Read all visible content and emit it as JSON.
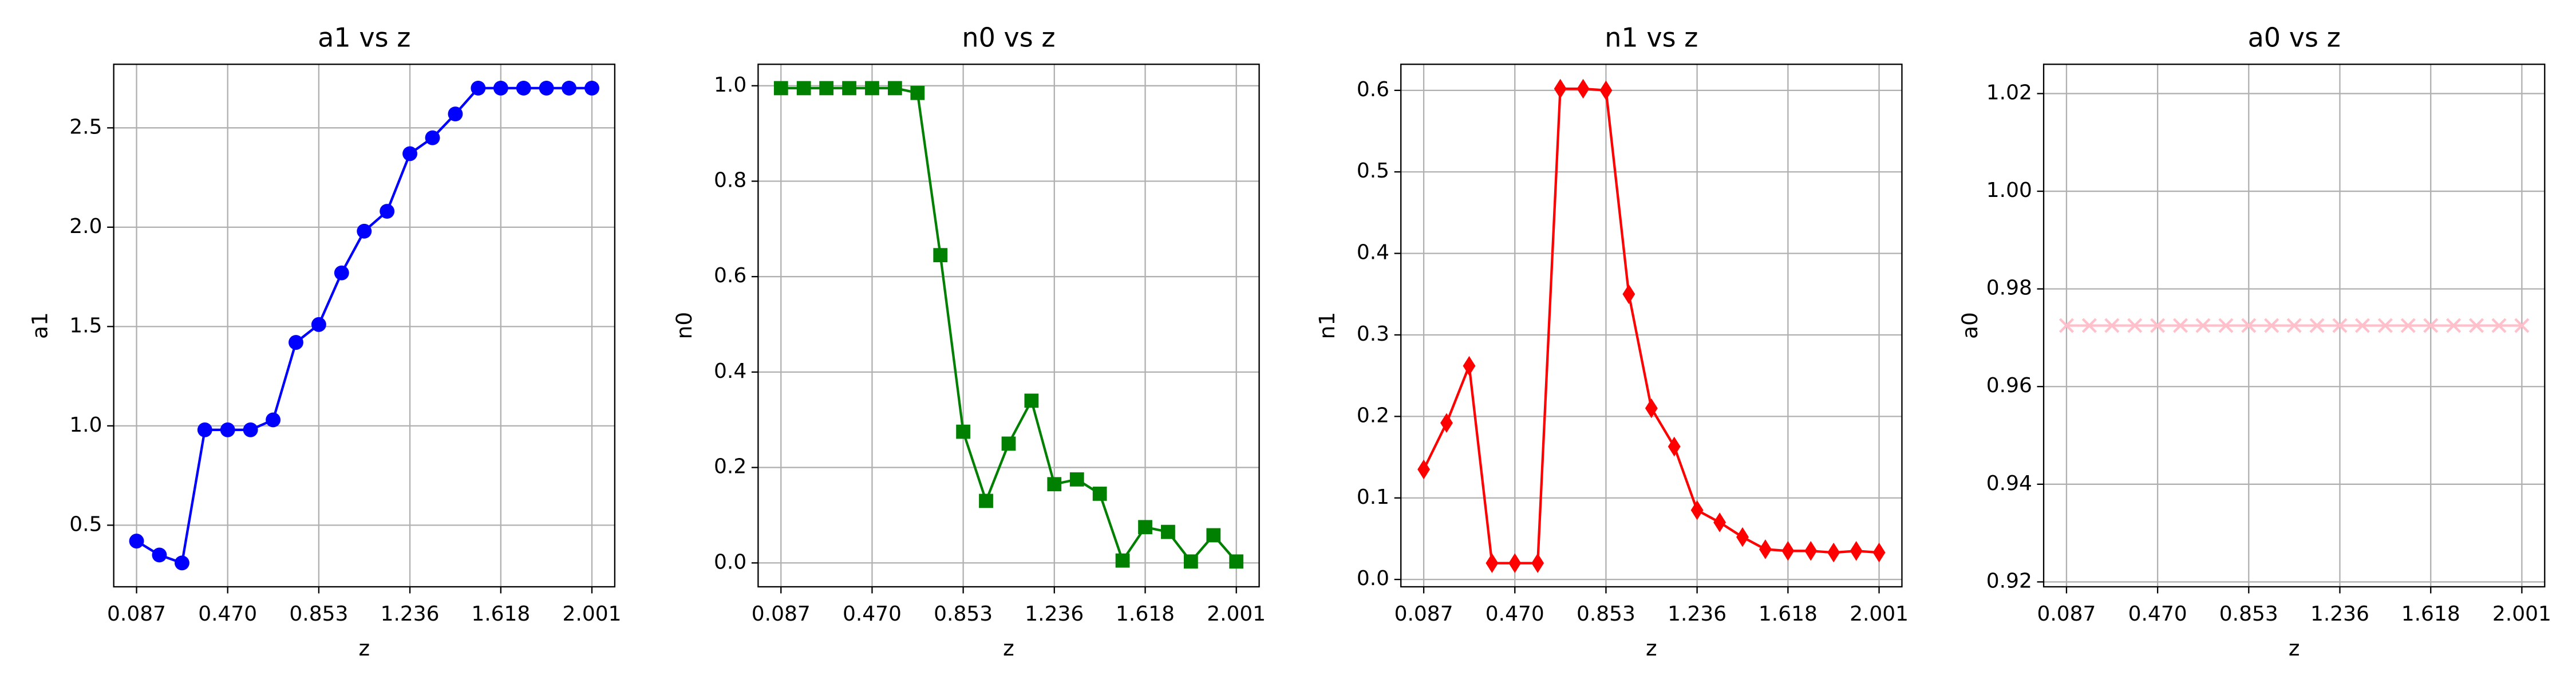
{
  "chart_data": [
    {
      "type": "line",
      "title": "a1 vs z",
      "xlabel": "z",
      "ylabel": "a1",
      "color": "blue",
      "marker": "circle",
      "grid": true,
      "x": [
        0.087,
        0.183,
        0.278,
        0.374,
        0.47,
        0.566,
        0.661,
        0.757,
        0.853,
        0.949,
        1.044,
        1.14,
        1.236,
        1.331,
        1.427,
        1.523,
        1.618,
        1.714,
        1.81,
        1.905,
        2.001
      ],
      "values": [
        0.42,
        0.35,
        0.31,
        0.98,
        0.98,
        0.98,
        1.03,
        1.42,
        1.51,
        1.77,
        1.98,
        2.08,
        2.37,
        2.45,
        2.57,
        2.7,
        2.7,
        2.7,
        2.7,
        2.7,
        2.7
      ],
      "xlim": [
        -0.009,
        2.097
      ],
      "ylim": [
        0.19,
        2.82
      ],
      "xticks": [
        {
          "value": 0.087,
          "label": "0.087"
        },
        {
          "value": 0.47,
          "label": "0.470"
        },
        {
          "value": 0.853,
          "label": "0.853"
        },
        {
          "value": 1.236,
          "label": "1.236"
        },
        {
          "value": 1.618,
          "label": "1.618"
        },
        {
          "value": 2.001,
          "label": "2.001"
        }
      ],
      "yticks": [
        0.5,
        {
          "value": 1,
          "label": "1.0"
        },
        1.5,
        {
          "value": 2,
          "label": "2.0"
        },
        2.5
      ]
    },
    {
      "type": "line",
      "title": "n0 vs z",
      "xlabel": "z",
      "ylabel": "n0",
      "color": "green",
      "marker": "square",
      "grid": true,
      "x": [
        0.087,
        0.183,
        0.278,
        0.374,
        0.47,
        0.566,
        0.661,
        0.757,
        0.853,
        0.949,
        1.044,
        1.14,
        1.236,
        1.331,
        1.427,
        1.523,
        1.618,
        1.714,
        1.81,
        1.905,
        2.001
      ],
      "values": [
        0.995,
        0.995,
        0.995,
        0.995,
        0.995,
        0.995,
        0.985,
        0.645,
        0.275,
        0.13,
        0.25,
        0.34,
        0.165,
        0.175,
        0.145,
        0.005,
        0.075,
        0.065,
        0.003,
        0.058,
        0.003
      ],
      "xlim": [
        -0.009,
        2.097
      ],
      "ylim": [
        -0.05,
        1.045
      ],
      "xticks": [
        {
          "value": 0.087,
          "label": "0.087"
        },
        {
          "value": 0.47,
          "label": "0.470"
        },
        {
          "value": 0.853,
          "label": "0.853"
        },
        {
          "value": 1.236,
          "label": "1.236"
        },
        {
          "value": 1.618,
          "label": "1.618"
        },
        {
          "value": 2.001,
          "label": "2.001"
        }
      ],
      "yticks": [
        {
          "value": 0,
          "label": "0.0"
        },
        0.2,
        0.4,
        0.6,
        0.8,
        {
          "value": 1,
          "label": "1.0"
        }
      ]
    },
    {
      "type": "line",
      "title": "n1 vs z",
      "xlabel": "z",
      "ylabel": "n1",
      "color": "red",
      "marker": "diamond",
      "grid": true,
      "x": [
        0.087,
        0.183,
        0.278,
        0.374,
        0.47,
        0.566,
        0.661,
        0.757,
        0.853,
        0.949,
        1.044,
        1.14,
        1.236,
        1.331,
        1.427,
        1.523,
        1.618,
        1.714,
        1.81,
        1.905,
        2.001
      ],
      "values": [
        0.135,
        0.192,
        0.262,
        0.02,
        0.02,
        0.02,
        0.602,
        0.602,
        0.6,
        0.35,
        0.21,
        0.163,
        0.085,
        0.07,
        0.052,
        0.037,
        0.035,
        0.035,
        0.033,
        0.035,
        0.033
      ],
      "xlim": [
        -0.009,
        2.097
      ],
      "ylim": [
        -0.009,
        0.632
      ],
      "xticks": [
        {
          "value": 0.087,
          "label": "0.087"
        },
        {
          "value": 0.47,
          "label": "0.470"
        },
        {
          "value": 0.853,
          "label": "0.853"
        },
        {
          "value": 1.236,
          "label": "1.236"
        },
        {
          "value": 1.618,
          "label": "1.618"
        },
        {
          "value": 2.001,
          "label": "2.001"
        }
      ],
      "yticks": [
        {
          "value": 0,
          "label": "0.0"
        },
        0.1,
        0.2,
        0.3,
        0.4,
        0.5,
        0.6
      ]
    },
    {
      "type": "line",
      "title": "a0 vs z",
      "xlabel": "z",
      "ylabel": "a0",
      "color": "pink",
      "marker": "x",
      "grid": true,
      "x": [
        0.087,
        0.183,
        0.278,
        0.374,
        0.47,
        0.566,
        0.661,
        0.757,
        0.853,
        0.949,
        1.044,
        1.14,
        1.236,
        1.331,
        1.427,
        1.523,
        1.618,
        1.714,
        1.81,
        1.905,
        2.001
      ],
      "values": [
        0.9725,
        0.9725,
        0.9725,
        0.9725,
        0.9725,
        0.9725,
        0.9725,
        0.9725,
        0.9725,
        0.9725,
        0.9725,
        0.9725,
        0.9725,
        0.9725,
        0.9725,
        0.9725,
        0.9725,
        0.9725,
        0.9725,
        0.9725,
        0.9725
      ],
      "xlim": [
        -0.009,
        2.097
      ],
      "ylim": [
        0.919,
        1.026
      ],
      "xticks": [
        {
          "value": 0.087,
          "label": "0.087"
        },
        {
          "value": 0.47,
          "label": "0.470"
        },
        {
          "value": 0.853,
          "label": "0.853"
        },
        {
          "value": 1.236,
          "label": "1.236"
        },
        {
          "value": 1.618,
          "label": "1.618"
        },
        {
          "value": 2.001,
          "label": "2.001"
        }
      ],
      "yticks": [
        0.92,
        0.94,
        0.96,
        0.98,
        {
          "value": 1,
          "label": "1.00"
        },
        1.02
      ]
    }
  ]
}
